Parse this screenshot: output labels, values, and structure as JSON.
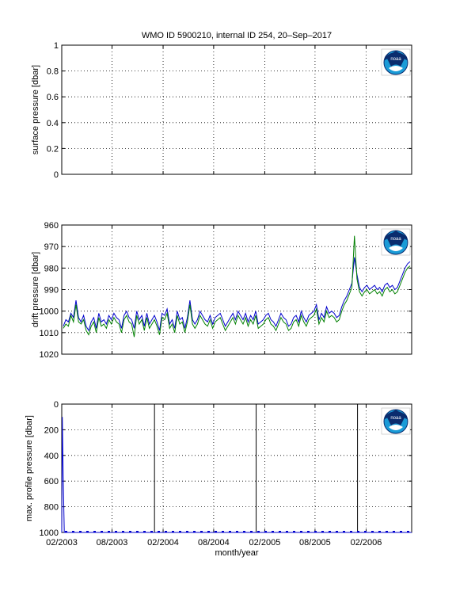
{
  "title": "WMO ID 5900210, internal ID 254, 20–Sep–2017",
  "xlabel": "month/year",
  "logo_text": "noaa",
  "colors": {
    "blue": "#0000cc",
    "green": "#008000",
    "grid": "#000000"
  },
  "chart_data": [
    {
      "type": "line",
      "ylabel": "surface pressure [dbar]",
      "ylim": [
        0,
        1
      ],
      "yticks": [
        "0",
        "0.2",
        "0.4",
        "0.6",
        "0.8",
        "1"
      ],
      "xticks": [
        "02/2003",
        "08/2003",
        "02/2004",
        "08/2004",
        "02/2005",
        "08/2005",
        "02/2006"
      ],
      "xlim": [
        "2003-02-01",
        "2006-07-15"
      ],
      "grid": true,
      "series": []
    },
    {
      "type": "line",
      "ylabel": "drift pressure [dbar]",
      "ylim": [
        960,
        1020
      ],
      "y_reversed": true,
      "yticks": [
        "960",
        "970",
        "980",
        "990",
        "1000",
        "1010",
        "1020"
      ],
      "xticks": [
        "02/2003",
        "08/2003",
        "02/2004",
        "08/2004",
        "02/2005",
        "08/2005",
        "02/2006"
      ],
      "xlim": [
        "2003-02-01",
        "2006-07-15"
      ],
      "grid": true,
      "series": [
        {
          "color": "blue",
          "values": [
            1007,
            1004,
            1005,
            1001,
            1003,
            995,
            1003,
            1005,
            1002,
            1007,
            1009,
            1005,
            1003,
            1008,
            1001,
            1005,
            1004,
            1006,
            1002,
            1004,
            1001,
            1003,
            1004,
            1008,
            1002,
            1000,
            1003,
            1004,
            1008,
            1000,
            1004,
            1002,
            1007,
            1001,
            1006,
            1004,
            1002,
            1005,
            1009,
            1001,
            1002,
            999,
            1006,
            1004,
            1008,
            1000,
            1004,
            1003,
            1008,
            1003,
            995,
            1004,
            1006,
            1004,
            1000,
            1002,
            1004,
            1005,
            1002,
            1006,
            1003,
            1002,
            1001,
            1004,
            1007,
            1005,
            1003,
            1001,
            1004,
            1000,
            1002,
            1004,
            1001,
            1005,
            1002,
            1004,
            1000,
            1006,
            1005,
            1004,
            1002,
            1001,
            1004,
            1005,
            1007,
            1004,
            1001,
            1003,
            1004,
            1007,
            1006,
            1003,
            1002,
            1005,
            1000,
            1003,
            1005,
            1002,
            1001,
            1000,
            997,
            1004,
            1001,
            1003,
            998,
            1001,
            1000,
            1001,
            1003,
            1002,
            998,
            995,
            993,
            990,
            987,
            975,
            983,
            989,
            991,
            989,
            988,
            990,
            989,
            988,
            990,
            989,
            991,
            988,
            987,
            989,
            988,
            990,
            989,
            986,
            983,
            980,
            978,
            977
          ]
        },
        {
          "color": "green",
          "values": [
            1008,
            1006,
            1007,
            1002,
            1005,
            997,
            1005,
            1006,
            1004,
            1009,
            1011,
            1007,
            1005,
            1010,
            1003,
            1007,
            1006,
            1008,
            1004,
            1006,
            1003,
            1005,
            1006,
            1010,
            1004,
            1002,
            1005,
            1006,
            1012,
            1002,
            1006,
            1004,
            1009,
            1003,
            1008,
            1006,
            1004,
            1007,
            1011,
            1003,
            1004,
            1001,
            1008,
            1006,
            1010,
            1002,
            1006,
            1005,
            1010,
            1005,
            997,
            1006,
            1008,
            1006,
            1002,
            1004,
            1006,
            1007,
            1004,
            1008,
            1005,
            1004,
            1003,
            1006,
            1009,
            1007,
            1005,
            1003,
            1006,
            1002,
            1004,
            1006,
            1003,
            1007,
            1004,
            1006,
            1002,
            1008,
            1007,
            1006,
            1004,
            1003,
            1006,
            1007,
            1009,
            1006,
            1003,
            1005,
            1006,
            1009,
            1008,
            1005,
            1004,
            1007,
            1002,
            1005,
            1007,
            1004,
            1003,
            1002,
            999,
            1006,
            1003,
            1005,
            1000,
            1003,
            1002,
            1003,
            1005,
            1004,
            1000,
            997,
            995,
            992,
            989,
            965,
            985,
            991,
            993,
            991,
            990,
            992,
            991,
            990,
            992,
            991,
            993,
            990,
            989,
            991,
            990,
            992,
            991,
            988,
            985,
            982,
            980,
            979
          ]
        }
      ]
    },
    {
      "type": "line",
      "ylabel": "max. profile pressure [dbar]",
      "ylim": [
        0,
        1000
      ],
      "y_reversed": true,
      "yticks": [
        "0",
        "200",
        "400",
        "600",
        "800",
        "1000"
      ],
      "xticks": [
        "02/2003",
        "08/2003",
        "02/2004",
        "08/2004",
        "02/2005",
        "08/2005",
        "02/2006"
      ],
      "xlim": [
        "2003-02-01",
        "2006-07-15"
      ],
      "grid": true,
      "vertical_lines_x": [
        "2004-01-01",
        "2005-01-01",
        "2006-01-01"
      ],
      "series": [
        {
          "color": "blue",
          "x": [
            "2003-02-01",
            "2003-02-03",
            "2003-02-06",
            "2003-02-10",
            "2006-07-15"
          ],
          "values": [
            1000,
            100,
            550,
            1000,
            1000
          ]
        }
      ]
    }
  ]
}
